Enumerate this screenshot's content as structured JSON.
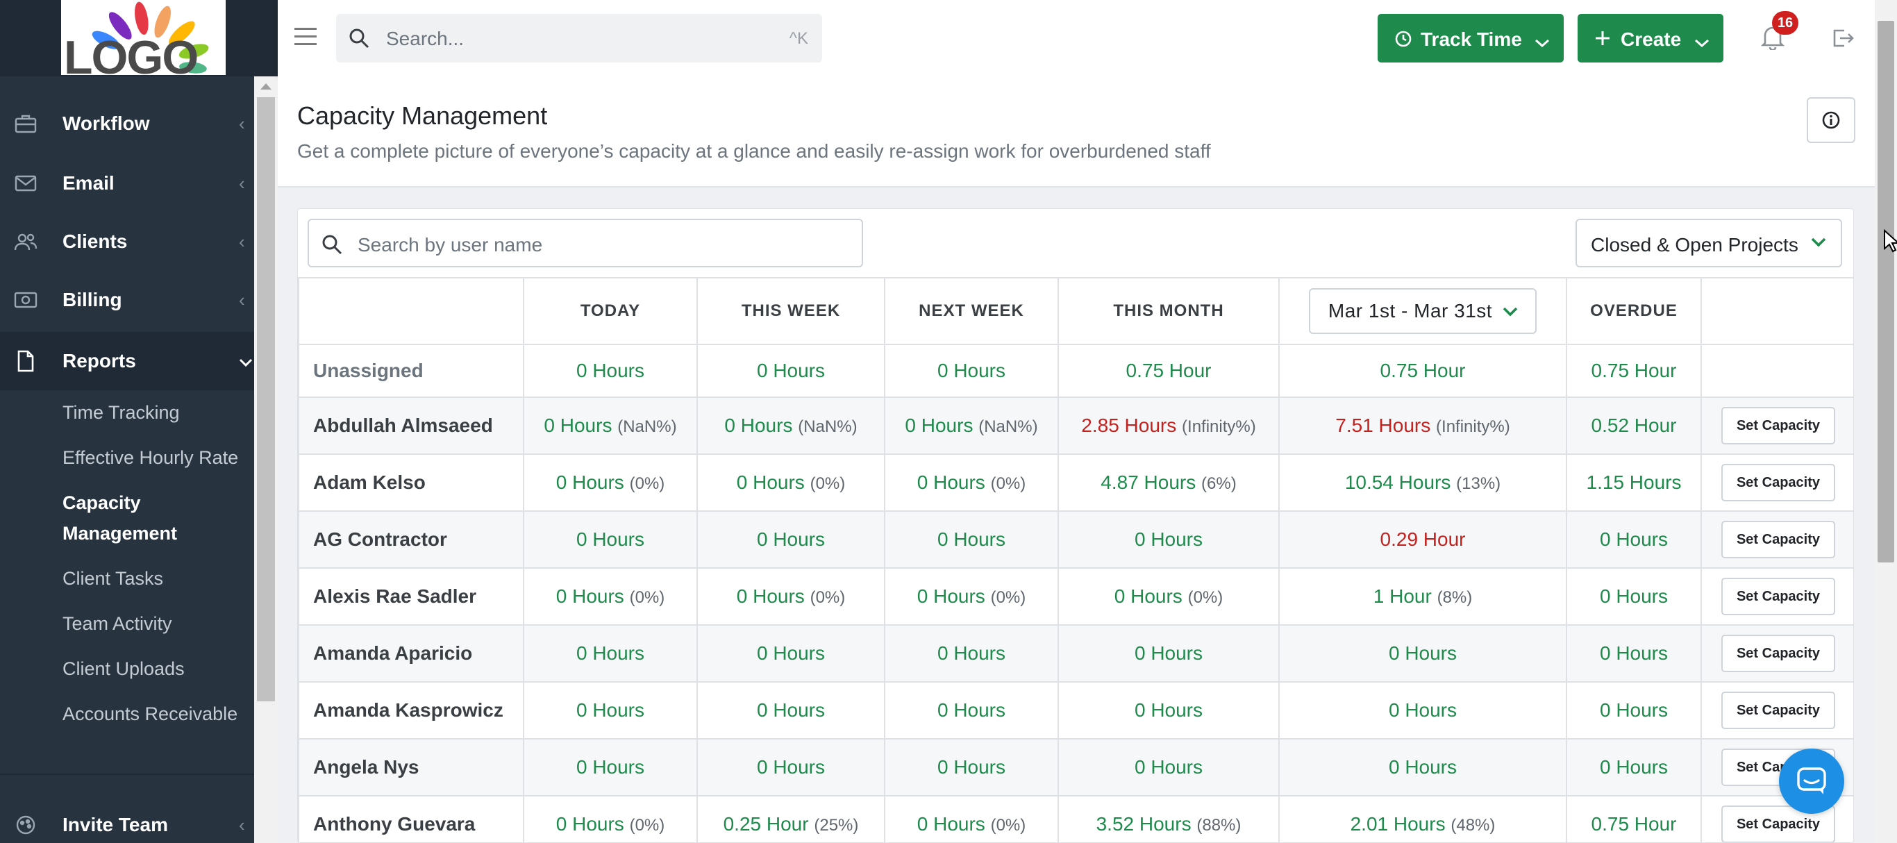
{
  "logo": {
    "text": "LOGO"
  },
  "sidebar": {
    "items": [
      {
        "label": "Workflow",
        "icon": "briefcase-icon"
      },
      {
        "label": "Email",
        "icon": "envelope-icon"
      },
      {
        "label": "Clients",
        "icon": "users-icon"
      },
      {
        "label": "Billing",
        "icon": "money-icon"
      },
      {
        "label": "Reports",
        "icon": "file-icon"
      }
    ],
    "reports_subitems": [
      "Time Tracking",
      "Effective Hourly Rate",
      "Capacity Management",
      "Client Tasks",
      "Team Activity",
      "Client Uploads",
      "Accounts Receivable"
    ],
    "bottom_item": {
      "label": "Invite Team",
      "icon": "palette-icon"
    }
  },
  "topbar": {
    "search_placeholder": "Search...",
    "search_shortcut": "^K",
    "track_time_label": "Track Time",
    "create_label": "Create",
    "notification_count": "16"
  },
  "page": {
    "title": "Capacity Management",
    "subtitle": "Get a complete picture of everyone’s capacity at a glance and easily re-assign work for overburdened staff"
  },
  "filters": {
    "user_search_placeholder": "Search by user name",
    "project_filter": "Closed & Open Projects"
  },
  "table": {
    "headers": [
      "TODAY",
      "THIS WEEK",
      "NEXT WEEK",
      "THIS MONTH"
    ],
    "date_range": "Mar 1st - Mar 31st",
    "overdue_header": "OVERDUE",
    "set_capacity_label": "Set Capacity",
    "rows": [
      {
        "name": "Unassigned",
        "cells": [
          [
            "0 Hours",
            ""
          ],
          [
            "0 Hours",
            ""
          ],
          [
            "0 Hours",
            ""
          ],
          [
            "0.75 Hour",
            ""
          ],
          [
            "0.75 Hour",
            ""
          ]
        ],
        "overdue": "0.75 Hour"
      },
      {
        "name": "Abdullah Almsaeed",
        "cells": [
          [
            "0 Hours",
            "(NaN%)"
          ],
          [
            "0 Hours",
            "(NaN%)"
          ],
          [
            "0 Hours",
            "(NaN%)"
          ],
          [
            "2.85 Hours",
            "(Infinity%)"
          ],
          [
            "7.51 Hours",
            "(Infinity%)"
          ]
        ],
        "overdue": "0.52 Hour"
      },
      {
        "name": "Adam Kelso",
        "cells": [
          [
            "0 Hours",
            "(0%)"
          ],
          [
            "0 Hours",
            "(0%)"
          ],
          [
            "0 Hours",
            "(0%)"
          ],
          [
            "4.87 Hours",
            "(6%)"
          ],
          [
            "10.54 Hours",
            "(13%)"
          ]
        ],
        "overdue": "1.15 Hours"
      },
      {
        "name": "AG Contractor",
        "cells": [
          [
            "0 Hours",
            ""
          ],
          [
            "0 Hours",
            ""
          ],
          [
            "0 Hours",
            ""
          ],
          [
            "0 Hours",
            ""
          ],
          [
            "0.29 Hour",
            ""
          ]
        ],
        "overdue": "0 Hours"
      },
      {
        "name": "Alexis Rae Sadler",
        "cells": [
          [
            "0 Hours",
            "(0%)"
          ],
          [
            "0 Hours",
            "(0%)"
          ],
          [
            "0 Hours",
            "(0%)"
          ],
          [
            "0 Hours",
            "(0%)"
          ],
          [
            "1 Hour",
            "(8%)"
          ]
        ],
        "overdue": "0 Hours"
      },
      {
        "name": "Amanda Aparicio",
        "cells": [
          [
            "0 Hours",
            ""
          ],
          [
            "0 Hours",
            ""
          ],
          [
            "0 Hours",
            ""
          ],
          [
            "0 Hours",
            ""
          ],
          [
            "0 Hours",
            ""
          ]
        ],
        "overdue": "0 Hours"
      },
      {
        "name": "Amanda Kasprowicz",
        "cells": [
          [
            "0 Hours",
            ""
          ],
          [
            "0 Hours",
            ""
          ],
          [
            "0 Hours",
            ""
          ],
          [
            "0 Hours",
            ""
          ],
          [
            "0 Hours",
            ""
          ]
        ],
        "overdue": "0 Hours"
      },
      {
        "name": "Angela Nys",
        "cells": [
          [
            "0 Hours",
            ""
          ],
          [
            "0 Hours",
            ""
          ],
          [
            "0 Hours",
            ""
          ],
          [
            "0 Hours",
            ""
          ],
          [
            "0 Hours",
            ""
          ]
        ],
        "overdue": "0 Hours"
      },
      {
        "name": "Anthony Guevara",
        "cells": [
          [
            "0 Hours",
            "(0%)"
          ],
          [
            "0.25 Hour",
            "(25%)"
          ],
          [
            "0 Hours",
            "(0%)"
          ],
          [
            "3.52 Hours",
            "(88%)"
          ],
          [
            "2.01 Hours",
            "(48%)"
          ]
        ],
        "overdue": "0.75 Hour"
      }
    ]
  },
  "colors": {
    "ok": "#1e8a4c",
    "over": "#c4221f",
    "sidebar": "#283340",
    "accent_button": "#1e8a4c",
    "chat": "#1d8fe5"
  }
}
